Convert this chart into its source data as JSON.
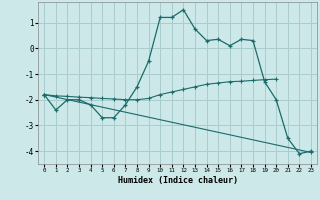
{
  "xlabel": "Humidex (Indice chaleur)",
  "background_color": "#cce8e8",
  "grid_color": "#aacccc",
  "line_color": "#1a6b6b",
  "xlim": [
    -0.5,
    23.5
  ],
  "ylim": [
    -4.5,
    1.8
  ],
  "yticks": [
    -4,
    -3,
    -2,
    -1,
    0,
    1
  ],
  "xticks": [
    0,
    1,
    2,
    3,
    4,
    5,
    6,
    7,
    8,
    9,
    10,
    11,
    12,
    13,
    14,
    15,
    16,
    17,
    18,
    19,
    20,
    21,
    22,
    23
  ],
  "line1_x": [
    0,
    1,
    2,
    3,
    4,
    5,
    6,
    7,
    8,
    9,
    10,
    11,
    12,
    13,
    14,
    15,
    16,
    17,
    18,
    19,
    20,
    21,
    22,
    23
  ],
  "line1_y": [
    -1.8,
    -2.4,
    -2.0,
    -2.0,
    -2.2,
    -2.7,
    -2.7,
    -2.2,
    -1.5,
    -0.5,
    1.2,
    1.2,
    1.5,
    0.75,
    0.3,
    0.35,
    0.1,
    0.35,
    0.3,
    -1.3,
    -2.0,
    -3.5,
    -4.1,
    -4.0
  ],
  "line2_x": [
    0,
    1,
    2,
    3,
    4,
    5,
    6,
    7,
    8,
    9,
    10,
    11,
    12,
    13,
    14,
    15,
    16,
    17,
    18,
    19,
    20
  ],
  "line2_y": [
    -1.8,
    -1.85,
    -1.87,
    -1.9,
    -1.92,
    -1.95,
    -1.97,
    -2.0,
    -2.0,
    -1.95,
    -1.8,
    -1.7,
    -1.6,
    -1.5,
    -1.4,
    -1.35,
    -1.3,
    -1.28,
    -1.25,
    -1.22,
    -1.2
  ],
  "line3_x": [
    0,
    23
  ],
  "line3_y": [
    -1.8,
    -4.05
  ]
}
